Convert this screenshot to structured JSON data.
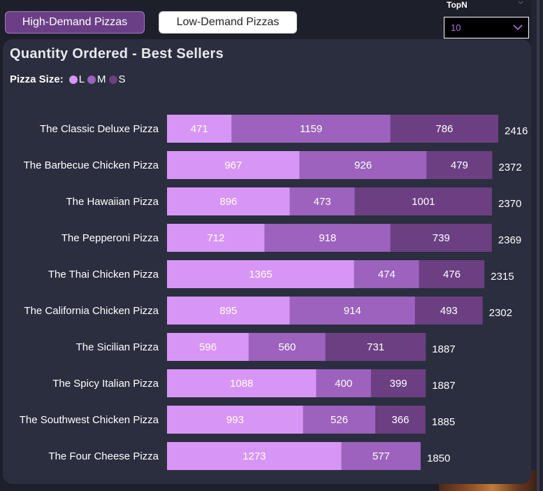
{
  "tabs": {
    "high_label": "High-Demand Pizzas",
    "low_label": "Low-Demand Pizzas"
  },
  "topn": {
    "label": "TopN",
    "value": "10"
  },
  "card": {
    "title": "Quantity Ordered - Best Sellers"
  },
  "legend": {
    "title": "Pizza Size:",
    "items": [
      {
        "label": "L",
        "color": "#d796f5"
      },
      {
        "label": "M",
        "color": "#9c62be"
      },
      {
        "label": "S",
        "color": "#6b3f82"
      }
    ]
  },
  "chart_data": {
    "type": "bar",
    "orientation": "horizontal",
    "stacked": true,
    "title": "Quantity Ordered - Best Sellers",
    "legend_title": "Pizza Size:",
    "categories": [
      "The Classic Deluxe Pizza",
      "The Barbecue Chicken Pizza",
      "The Hawaiian Pizza",
      "The Pepperoni Pizza",
      "The Thai Chicken Pizza",
      "The California Chicken Pizza",
      "The Sicilian Pizza",
      "The Spicy Italian Pizza",
      "The Southwest Chicken Pizza",
      "The Four Cheese Pizza"
    ],
    "series": [
      {
        "name": "L",
        "color": "#d796f5",
        "values": [
          471,
          967,
          896,
          712,
          1365,
          895,
          596,
          1088,
          993,
          1273
        ]
      },
      {
        "name": "M",
        "color": "#9c62be",
        "values": [
          1159,
          926,
          473,
          918,
          474,
          914,
          560,
          400,
          526,
          577
        ]
      },
      {
        "name": "S",
        "color": "#6b3f82",
        "values": [
          786,
          479,
          1001,
          739,
          476,
          493,
          731,
          399,
          366,
          0
        ]
      }
    ],
    "totals": [
      2416,
      2372,
      2370,
      2369,
      2315,
      2302,
      1887,
      1887,
      1885,
      1850
    ],
    "grid": false
  }
}
